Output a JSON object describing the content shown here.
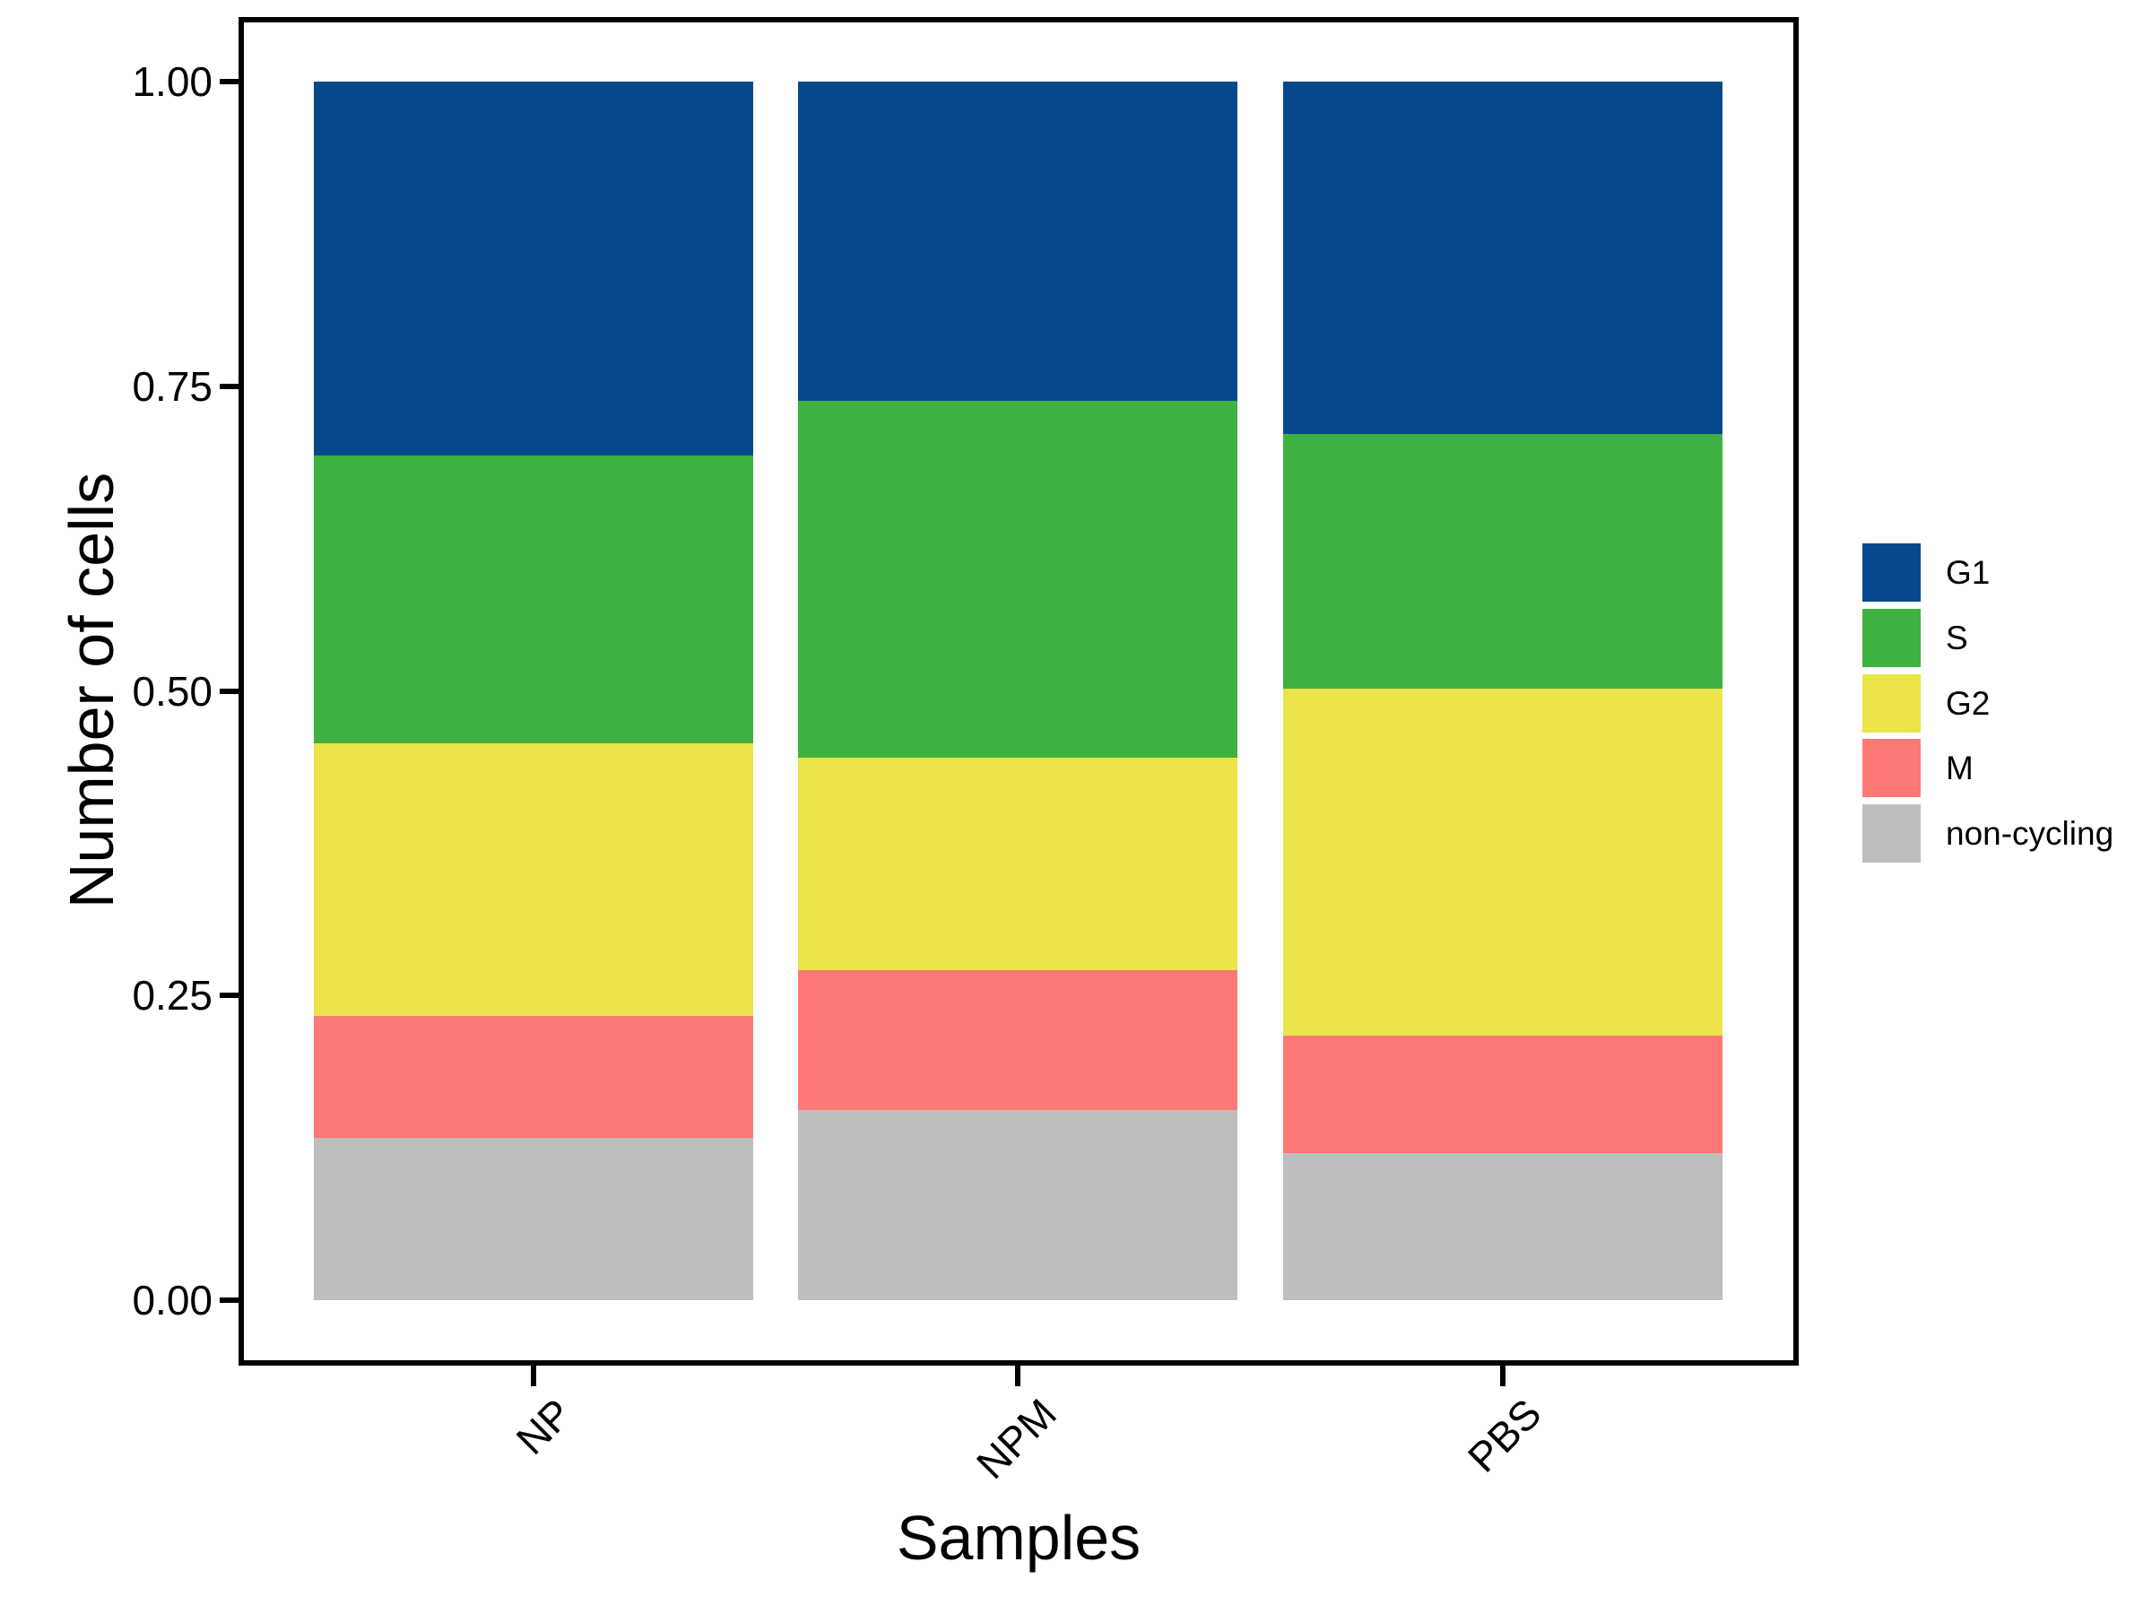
{
  "axes": {
    "y": {
      "title": "Number of cells",
      "ticks": [
        {
          "label": "0.00",
          "value": 0.0
        },
        {
          "label": "0.25",
          "value": 0.25
        },
        {
          "label": "0.50",
          "value": 0.5
        },
        {
          "label": "0.75",
          "value": 0.75
        },
        {
          "label": "1.00",
          "value": 1.0
        }
      ]
    },
    "x": {
      "title": "Samples",
      "categories": [
        "NP",
        "NPM",
        "PBS"
      ]
    }
  },
  "legend": {
    "items": [
      {
        "label": "G1",
        "color": "#05498C"
      },
      {
        "label": "S",
        "color": "#3FB140"
      },
      {
        "label": "G2",
        "color": "#EAE44A"
      },
      {
        "label": "M",
        "color": "#FC7976"
      },
      {
        "label": "non-cycling",
        "color": "#BEBEBE"
      }
    ]
  },
  "chart_data": {
    "type": "bar",
    "stacked": true,
    "normalized": true,
    "title": "",
    "xlabel": "Samples",
    "ylabel": "Number of cells",
    "ylim": [
      0,
      1
    ],
    "grid": false,
    "legend_position": "right",
    "categories": [
      "NP",
      "NPM",
      "PBS"
    ],
    "series": [
      {
        "name": "G1",
        "color": "#05498C",
        "values": [
          0.307,
          0.262,
          0.289
        ]
      },
      {
        "name": "S",
        "color": "#3FB140",
        "values": [
          0.236,
          0.293,
          0.209
        ]
      },
      {
        "name": "G2",
        "color": "#EAE44A",
        "values": [
          0.224,
          0.174,
          0.285
        ]
      },
      {
        "name": "M",
        "color": "#FC7976",
        "values": [
          0.1,
          0.115,
          0.096
        ]
      },
      {
        "name": "non-cycling",
        "color": "#BEBEBE",
        "values": [
          0.133,
          0.156,
          0.121
        ]
      }
    ]
  },
  "colors": {
    "background": "#FFFFFF",
    "panel_border": "#000000",
    "text": "#000000"
  }
}
